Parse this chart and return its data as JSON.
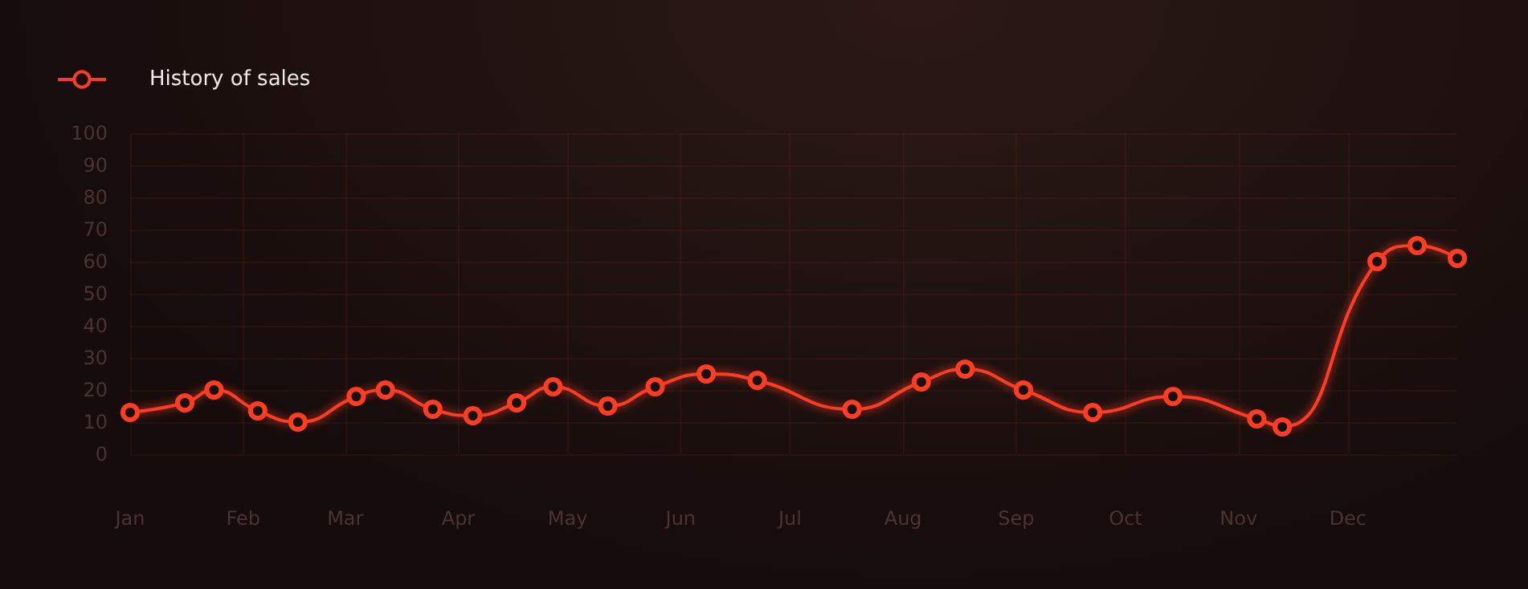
{
  "chart_data": {
    "type": "line",
    "x": [
      "--01-01",
      "--01-16",
      "--01-24",
      "--02-05",
      "--02-16",
      "--03-04",
      "--03-12",
      "--03-25",
      "--04-05",
      "--04-17",
      "--04-27",
      "--05-12",
      "--05-25",
      "--06-08",
      "--06-22",
      "--07-18",
      "--08-06",
      "--08-18",
      "--09-03",
      "--09-22",
      "--10-14",
      "--11-06",
      "--11-13",
      "--12-09",
      "--12-20",
      "--12-31"
    ],
    "series": [
      {
        "name": "History of sales",
        "color": "#ff3d22",
        "values": [
          13,
          16,
          20,
          13.5,
          10,
          18,
          20,
          14,
          12,
          16,
          21,
          15,
          21,
          25,
          23,
          14,
          22.5,
          26.5,
          20,
          13,
          18,
          11,
          8.5,
          60,
          65,
          61
        ]
      }
    ],
    "xlim": [
      "--01-01",
      "--12-31"
    ],
    "xticks": [
      {
        "value": "--01-01",
        "label": "Jan"
      },
      {
        "value": "--02-01",
        "label": "Feb"
      },
      {
        "value": "--03-01",
        "label": "Mar"
      },
      {
        "value": "--04-01",
        "label": "Apr"
      },
      {
        "value": "--05-01",
        "label": "May"
      },
      {
        "value": "--06-01",
        "label": "Jun"
      },
      {
        "value": "--07-01",
        "label": "Jul"
      },
      {
        "value": "--08-01",
        "label": "Aug"
      },
      {
        "value": "--09-01",
        "label": "Sep"
      },
      {
        "value": "--10-01",
        "label": "Oct"
      },
      {
        "value": "--11-01",
        "label": "Nov"
      },
      {
        "value": "--12-01",
        "label": "Dec"
      }
    ],
    "ylim": [
      0,
      100
    ],
    "yticks": [
      0,
      10,
      20,
      30,
      40,
      50,
      60,
      70,
      80,
      90,
      100
    ],
    "grid": true,
    "legend": "top left",
    "marker": "circle",
    "line_style": "solid"
  }
}
